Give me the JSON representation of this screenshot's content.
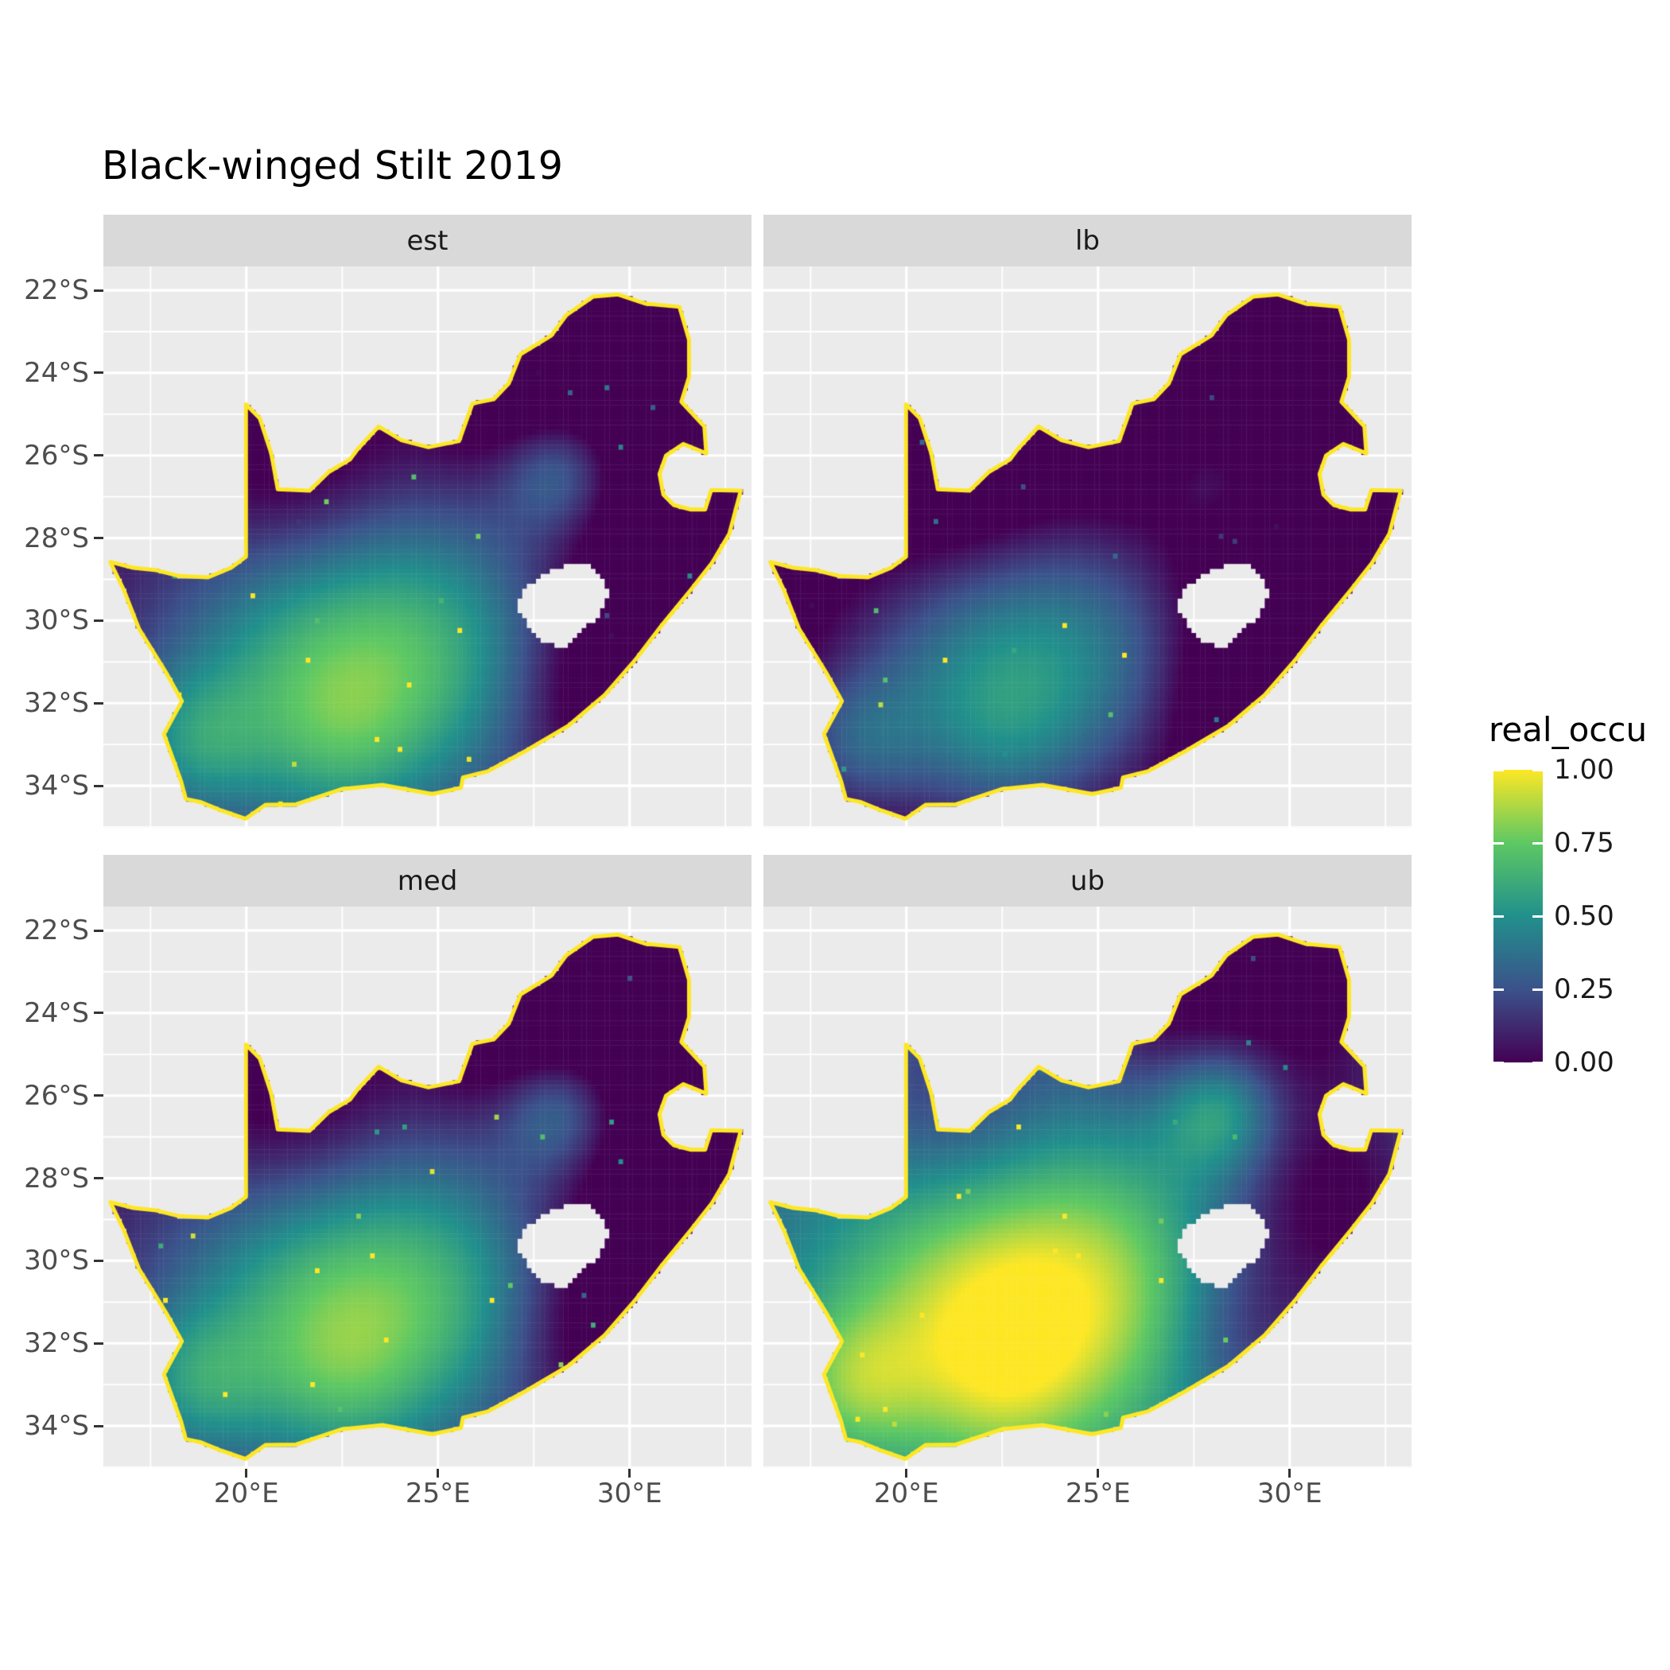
{
  "title": "Black-winged Stilt 2019",
  "legend": {
    "title": "real_occu",
    "tick_labels": [
      "1.00",
      "0.75",
      "0.50",
      "0.25",
      "0.00"
    ],
    "tick_values": [
      1.0,
      0.75,
      0.5,
      0.25,
      0.0
    ]
  },
  "axes": {
    "x_tick_labels": [
      "20°E",
      "25°E",
      "30°E"
    ],
    "x_tick_values": [
      20,
      25,
      30
    ],
    "y_tick_labels": [
      "22°S",
      "24°S",
      "26°S",
      "28°S",
      "30°S",
      "32°S",
      "34°S"
    ],
    "y_tick_values": [
      -22,
      -24,
      -26,
      -28,
      -30,
      -32,
      -34
    ]
  },
  "colors": {
    "panel_bg": "#ebebeb",
    "strip_bg": "#d9d9d9",
    "strip_text": "#1a1a1a",
    "gridline": "#ffffff",
    "axis_text": "#4d4d4d",
    "title_text": "#000000"
  },
  "chart_data": {
    "type": "heatmap",
    "subtype": "faceted-raster-occupancy-map",
    "region": "South Africa",
    "title": "Black-winged Stilt 2019",
    "fill_variable": "real_occu",
    "fill_range": [
      0,
      1
    ],
    "facet_layout": "2x2",
    "legend_position": "right",
    "facets": [
      {
        "label": "est",
        "value_offset": 0.0
      },
      {
        "label": "lb",
        "value_offset": -0.25
      },
      {
        "label": "med",
        "value_offset": 0.02
      },
      {
        "label": "ub",
        "value_offset": 0.3
      }
    ],
    "x_domain": [
      16.27,
      33.18
    ],
    "y_domain": [
      -21.42,
      -35.02
    ],
    "x_major_gridlines": [
      20,
      25,
      30
    ],
    "x_minor_gridlines": [
      17.5,
      22.5,
      27.5,
      32.5
    ],
    "y_major_gridlines": [
      -22,
      -24,
      -26,
      -28,
      -30,
      -32,
      -34
    ],
    "y_minor_gridlines": [
      -23,
      -25,
      -27,
      -29,
      -31,
      -33,
      -35
    ],
    "colorscale": {
      "name": "viridis",
      "values": [
        0,
        0.25,
        0.5,
        0.75,
        1
      ],
      "colors": [
        "#440154",
        "#3B528B",
        "#21908C",
        "#5DC863",
        "#FDE725"
      ]
    },
    "outline_color": "#FDE725",
    "cell_size_deg": 0.12,
    "base_value": 0.42,
    "noise_amplitude": 0.8,
    "value_field_blobs": [
      [
        21.5,
        -31.3,
        2.8,
        0.5
      ],
      [
        25.2,
        -30.8,
        2.6,
        0.42
      ],
      [
        28.2,
        -26.35,
        1.1,
        0.4
      ],
      [
        18.6,
        -33.0,
        1.3,
        0.3
      ],
      [
        22.5,
        -33.0,
        1.5,
        0.15
      ],
      [
        29.8,
        -23.3,
        2.3,
        -0.4
      ],
      [
        31.0,
        -28.8,
        2.0,
        -0.35
      ],
      [
        21.3,
        -26.3,
        1.9,
        -0.2
      ],
      [
        26.5,
        -23.9,
        1.5,
        -0.22
      ],
      [
        28.8,
        -31.8,
        1.5,
        -0.22
      ]
    ],
    "boundary_lonlat": [
      [
        16.45,
        -28.58
      ],
      [
        17.05,
        -28.72
      ],
      [
        17.65,
        -28.78
      ],
      [
        18.25,
        -28.92
      ],
      [
        19.0,
        -28.95
      ],
      [
        19.6,
        -28.72
      ],
      [
        19.99,
        -28.45
      ],
      [
        19.99,
        -24.76
      ],
      [
        20.35,
        -25.1
      ],
      [
        20.65,
        -25.95
      ],
      [
        20.82,
        -26.82
      ],
      [
        21.65,
        -26.85
      ],
      [
        22.15,
        -26.4
      ],
      [
        22.7,
        -26.1
      ],
      [
        22.9,
        -25.85
      ],
      [
        23.45,
        -25.3
      ],
      [
        24.05,
        -25.63
      ],
      [
        24.75,
        -25.8
      ],
      [
        25.55,
        -25.65
      ],
      [
        25.9,
        -24.74
      ],
      [
        26.45,
        -24.64
      ],
      [
        26.85,
        -24.25
      ],
      [
        27.15,
        -23.55
      ],
      [
        27.95,
        -23.1
      ],
      [
        28.35,
        -22.6
      ],
      [
        29.05,
        -22.15
      ],
      [
        29.7,
        -22.1
      ],
      [
        30.4,
        -22.32
      ],
      [
        31.3,
        -22.4
      ],
      [
        31.55,
        -23.2
      ],
      [
        31.55,
        -24.1
      ],
      [
        31.35,
        -24.7
      ],
      [
        31.95,
        -25.3
      ],
      [
        32.0,
        -25.95
      ],
      [
        31.4,
        -25.72
      ],
      [
        30.95,
        -26.0
      ],
      [
        30.78,
        -26.45
      ],
      [
        30.88,
        -26.95
      ],
      [
        31.15,
        -27.2
      ],
      [
        31.6,
        -27.31
      ],
      [
        31.97,
        -27.31
      ],
      [
        32.13,
        -26.84
      ],
      [
        32.9,
        -26.85
      ],
      [
        32.6,
        -27.9
      ],
      [
        32.15,
        -28.6
      ],
      [
        31.6,
        -29.25
      ],
      [
        30.85,
        -30.1
      ],
      [
        30.15,
        -30.95
      ],
      [
        29.35,
        -31.8
      ],
      [
        28.4,
        -32.55
      ],
      [
        27.3,
        -33.15
      ],
      [
        26.3,
        -33.65
      ],
      [
        25.65,
        -33.8
      ],
      [
        25.6,
        -34.05
      ],
      [
        24.85,
        -34.2
      ],
      [
        23.55,
        -33.98
      ],
      [
        22.5,
        -34.08
      ],
      [
        21.3,
        -34.45
      ],
      [
        20.5,
        -34.46
      ],
      [
        19.98,
        -34.8
      ],
      [
        19.35,
        -34.6
      ],
      [
        18.82,
        -34.4
      ],
      [
        18.42,
        -34.32
      ],
      [
        18.3,
        -33.9
      ],
      [
        17.85,
        -32.75
      ],
      [
        18.32,
        -31.95
      ],
      [
        17.9,
        -31.25
      ],
      [
        17.2,
        -30.2
      ],
      [
        16.8,
        -29.25
      ]
    ],
    "lesotho_hole_lonlat": [
      [
        27.02,
        -29.63
      ],
      [
        27.35,
        -30.15
      ],
      [
        27.75,
        -30.55
      ],
      [
        28.25,
        -30.66
      ],
      [
        28.6,
        -30.4
      ],
      [
        29.15,
        -29.92
      ],
      [
        29.45,
        -29.35
      ],
      [
        29.28,
        -29.0
      ],
      [
        28.85,
        -28.58
      ],
      [
        28.2,
        -28.7
      ],
      [
        27.72,
        -28.9
      ],
      [
        27.3,
        -29.18
      ]
    ]
  }
}
